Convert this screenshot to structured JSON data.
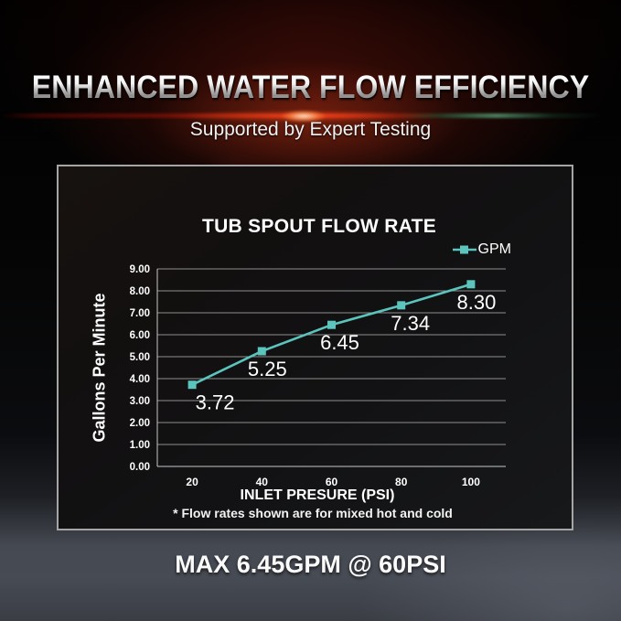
{
  "header": {
    "title": "ENHANCED WATER FLOW EFFICIENCY",
    "subtitle": "Supported by Expert Testing"
  },
  "chart_data": {
    "type": "line",
    "title": "TUB SPOUT FLOW RATE",
    "xlabel": "INLET PRESURE (PSI)",
    "ylabel": "Gallons Per Minute",
    "footnote": "* Flow rates shown are for mixed hot and cold",
    "categories": [
      20,
      40,
      60,
      80,
      100
    ],
    "series": [
      {
        "name": "GPM",
        "values": [
          3.72,
          5.25,
          6.45,
          7.34,
          8.3
        ]
      }
    ],
    "data_labels": [
      "3.72",
      "5.25",
      "6.45",
      "7.34",
      "8.30"
    ],
    "ylim": [
      0,
      9
    ],
    "ytick_step": 1,
    "ytick_decimals": 2,
    "grid": true,
    "legend_position": "top-right",
    "line_color": "#5BC4BC",
    "marker": "square",
    "colors": {
      "gridline": "#8f8f8f",
      "axis_line": "#c8c8c8",
      "tick_text": "#ffffff",
      "panel_border": "#a5a5a5"
    }
  },
  "footer": {
    "caption": "MAX 6.45GPM @ 60PSI"
  }
}
